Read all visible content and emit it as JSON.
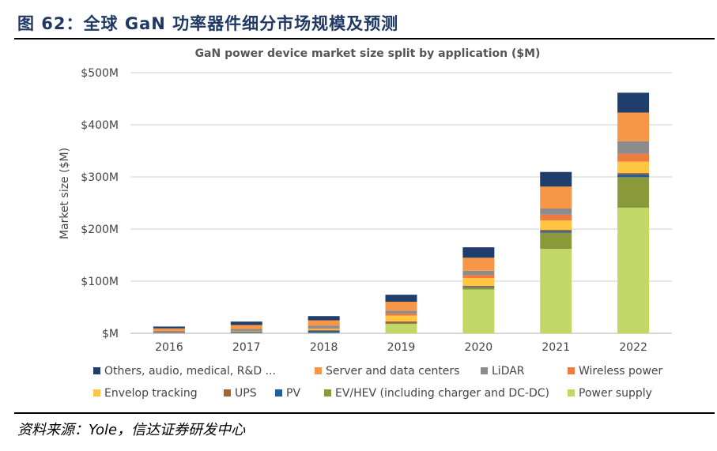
{
  "figure_title": "图 62：全球 GaN 功率器件细分市场规模及预测",
  "source": "资料来源：Yole，信达证券研发中心",
  "chart_data": {
    "type": "bar",
    "stacked": true,
    "title": "GaN power device market size split by application ($M)",
    "xlabel": "",
    "ylabel": "Market size ($M)",
    "ylim": [
      0,
      500
    ],
    "yticks": [
      "$M",
      "$100M",
      "$200M",
      "$300M",
      "$400M",
      "$500M"
    ],
    "grid": true,
    "legend_position": "bottom",
    "categories": [
      "2016",
      "2017",
      "2018",
      "2019",
      "2020",
      "2021",
      "2022"
    ],
    "series": [
      {
        "name": "Power supply",
        "color": "#c2d866",
        "values": [
          0,
          0.5,
          0.5,
          18,
          84,
          162,
          241
        ]
      },
      {
        "name": "EV/HEV (including charger and DC-DC)",
        "color": "#8a9a3b",
        "values": [
          0,
          0.5,
          0.5,
          0.5,
          3.5,
          31,
          58.5
        ]
      },
      {
        "name": "PV",
        "color": "#1f5f9f",
        "values": [
          0.5,
          1.5,
          3.5,
          0.5,
          1.5,
          3,
          5
        ]
      },
      {
        "name": "UPS",
        "color": "#a8652b",
        "values": [
          0.5,
          1,
          1.5,
          4,
          2,
          2.5,
          3
        ]
      },
      {
        "name": "Envelop tracking",
        "color": "#ffc543",
        "values": [
          0,
          0.5,
          2,
          11,
          15,
          18,
          22
        ]
      },
      {
        "name": "Wireless power",
        "color": "#ef7b3e",
        "values": [
          0.5,
          0.5,
          1.5,
          4,
          6,
          11,
          15
        ]
      },
      {
        "name": "LiDAR",
        "color": "#8c8c8c",
        "values": [
          3,
          4,
          5,
          5.5,
          8,
          12,
          24
        ]
      },
      {
        "name": "Server and data centers",
        "color": "#f79646",
        "values": [
          5,
          7.5,
          10.5,
          17,
          25,
          42,
          55
        ]
      },
      {
        "name": "Others, audio, medical, R&D ...",
        "color": "#1f3e6c",
        "values": [
          3.5,
          6.5,
          8,
          13.5,
          20,
          28,
          38
        ]
      }
    ],
    "legend_order": [
      "Others, audio, medical, R&D ...",
      "Server and data centers",
      "LiDAR",
      "Wireless power",
      "Envelop tracking",
      "UPS",
      "PV",
      "EV/HEV (including charger and DC-DC)",
      "Power supply"
    ]
  }
}
